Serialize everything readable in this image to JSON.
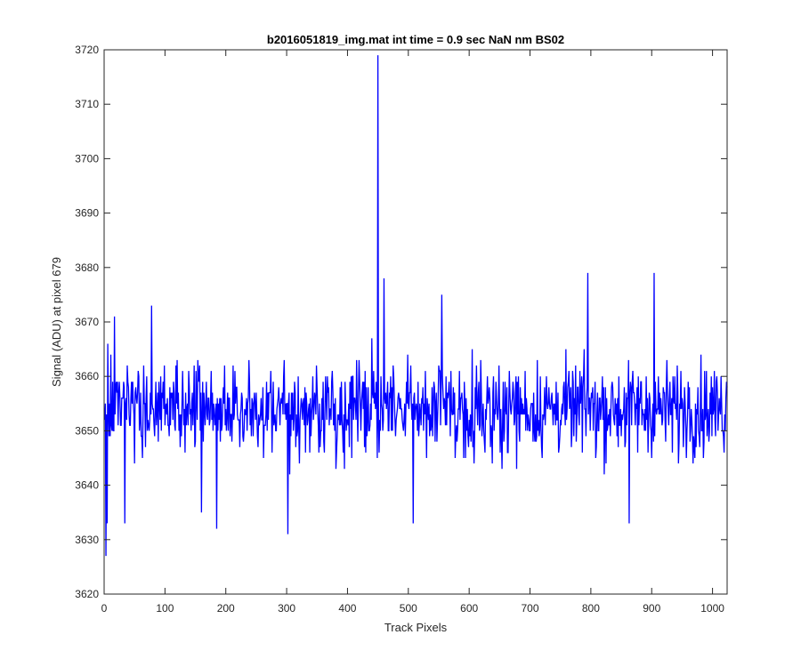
{
  "chart_data": {
    "type": "line",
    "title": "b2016051819_img.mat int time = 0.9 sec  NaN nm BS02",
    "xlabel": "Track Pixels",
    "ylabel": "Signal (ADU) at pixel 679",
    "xlim": [
      0,
      1024
    ],
    "ylim": [
      3620,
      3720
    ],
    "xticks": [
      0,
      100,
      200,
      300,
      400,
      500,
      600,
      700,
      800,
      900,
      1000
    ],
    "yticks": [
      3620,
      3630,
      3640,
      3650,
      3660,
      3670,
      3680,
      3690,
      3700,
      3710,
      3720
    ],
    "grid": false,
    "series": [
      {
        "color": "#0000ff",
        "x_start": 1,
        "x_step": 1,
        "noise_model": {
          "mean": 3654,
          "spread": 8,
          "min": 3627,
          "max": 3679
        },
        "key_points": [
          {
            "x": 1,
            "y": 3652
          },
          {
            "x": 3,
            "y": 3627
          },
          {
            "x": 5,
            "y": 3633
          },
          {
            "x": 11,
            "y": 3664
          },
          {
            "x": 17,
            "y": 3671
          },
          {
            "x": 34,
            "y": 3633
          },
          {
            "x": 78,
            "y": 3673
          },
          {
            "x": 160,
            "y": 3635
          },
          {
            "x": 185,
            "y": 3632
          },
          {
            "x": 302,
            "y": 3631
          },
          {
            "x": 449,
            "y": 3645
          },
          {
            "x": 450,
            "y": 3719
          },
          {
            "x": 451,
            "y": 3651
          },
          {
            "x": 460,
            "y": 3678
          },
          {
            "x": 508,
            "y": 3633
          },
          {
            "x": 555,
            "y": 3675
          },
          {
            "x": 795,
            "y": 3679
          },
          {
            "x": 863,
            "y": 3633
          },
          {
            "x": 904,
            "y": 3679
          },
          {
            "x": 1021,
            "y": 3650
          },
          {
            "x": 1024,
            "y": 3658
          }
        ]
      }
    ]
  }
}
